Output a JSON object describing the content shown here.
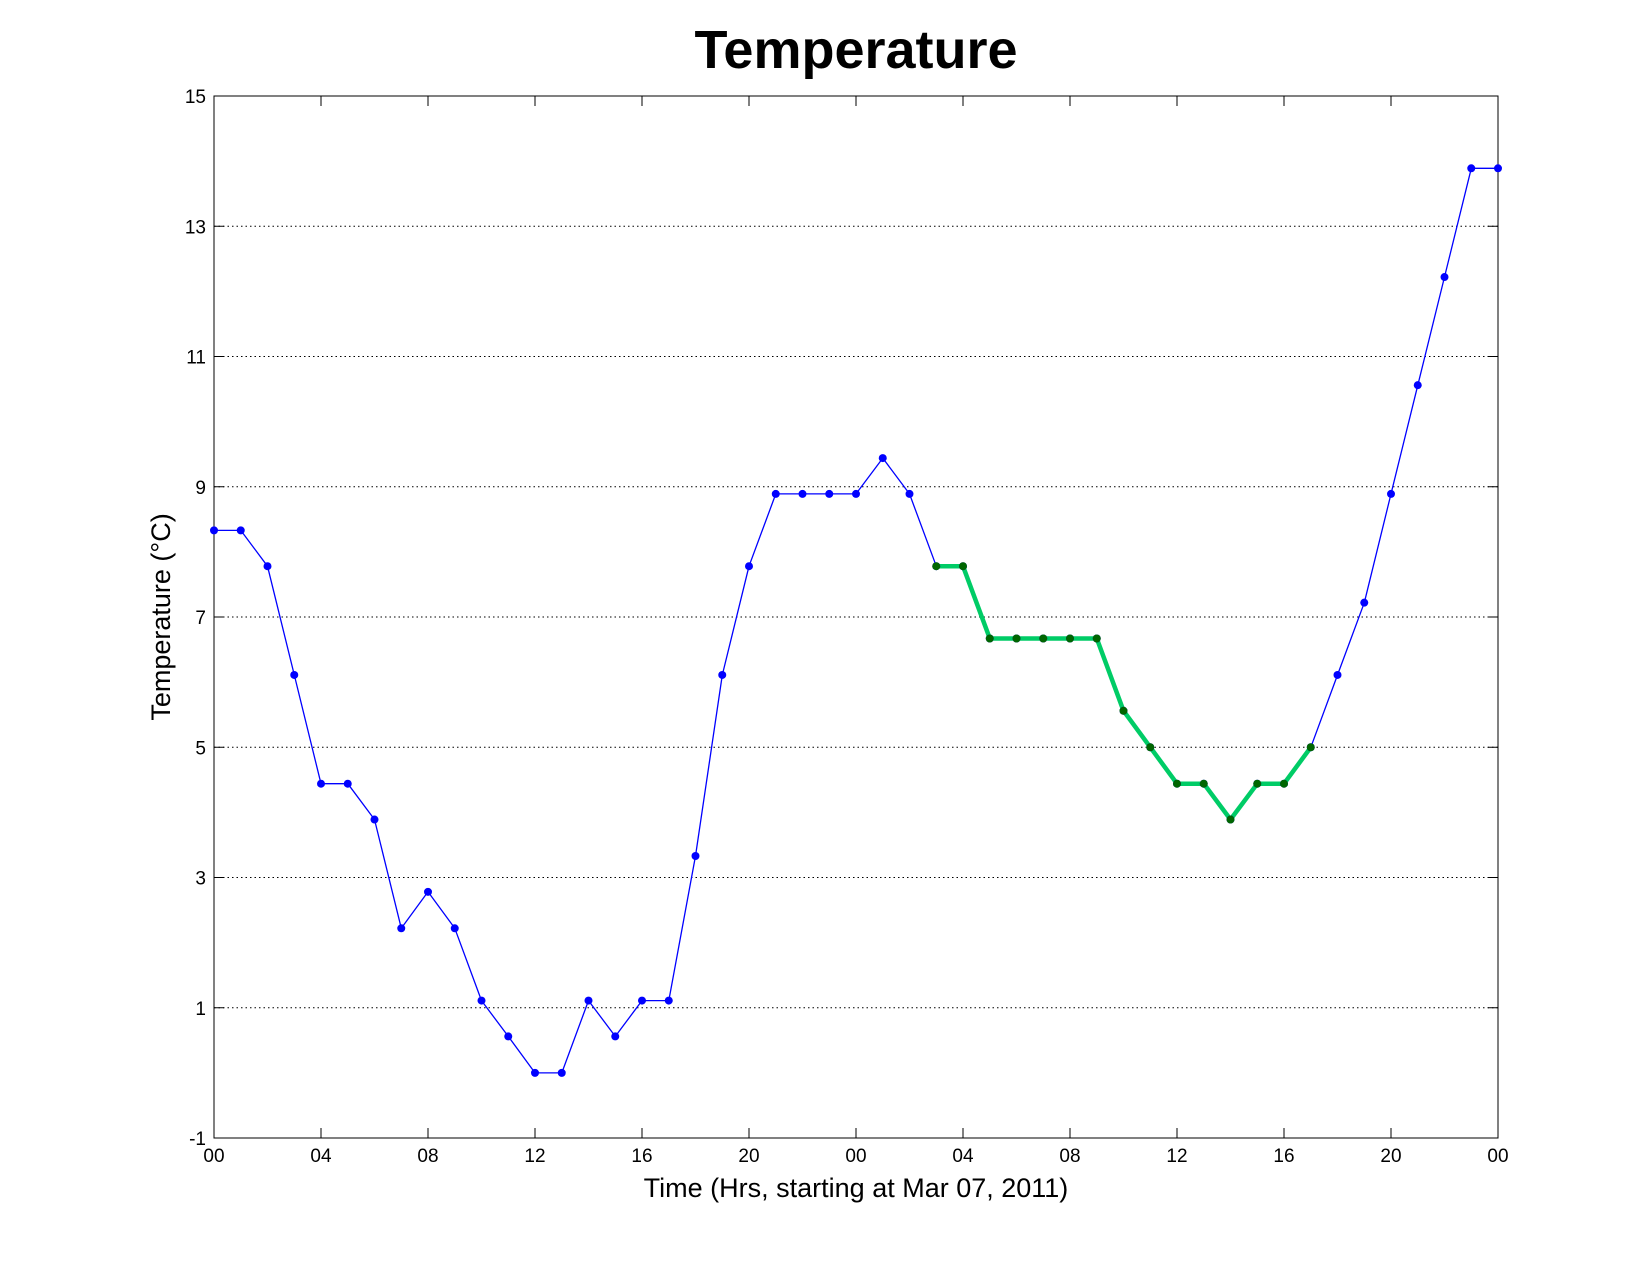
{
  "chart_data": {
    "type": "line",
    "title": "Temperature",
    "xlabel": "Time (Hrs, starting at Mar 07, 2011)",
    "ylabel": "Temperature (°C)",
    "xlim": [
      0,
      48
    ],
    "ylim": [
      -1,
      15
    ],
    "grid": "y-dotted",
    "x_ticks": [
      {
        "x": 0,
        "label": "00"
      },
      {
        "x": 4,
        "label": "04"
      },
      {
        "x": 8,
        "label": "08"
      },
      {
        "x": 12,
        "label": "12"
      },
      {
        "x": 16,
        "label": "16"
      },
      {
        "x": 20,
        "label": "20"
      },
      {
        "x": 24,
        "label": "00"
      },
      {
        "x": 28,
        "label": "04"
      },
      {
        "x": 32,
        "label": "08"
      },
      {
        "x": 36,
        "label": "12"
      },
      {
        "x": 40,
        "label": "16"
      },
      {
        "x": 44,
        "label": "20"
      },
      {
        "x": 48,
        "label": "00"
      }
    ],
    "y_ticks": [
      -1,
      1,
      3,
      5,
      7,
      9,
      11,
      13,
      15
    ],
    "series": [
      {
        "color": "#0000ff",
        "marker_color": "#0000ff",
        "x": [
          0,
          1,
          2,
          3,
          4,
          5,
          6,
          7,
          8,
          9,
          10,
          11,
          12,
          13,
          14,
          15,
          16,
          17,
          18,
          19,
          20,
          21,
          22,
          23,
          24,
          25,
          26,
          27,
          28,
          29,
          30,
          31,
          32,
          33,
          34,
          35,
          36,
          37,
          38,
          39,
          40,
          41,
          42,
          43,
          44,
          45,
          46,
          47,
          48
        ],
        "y": [
          8.33,
          8.33,
          7.78,
          6.11,
          4.44,
          4.44,
          3.89,
          2.22,
          2.78,
          2.22,
          1.11,
          0.56,
          0.0,
          0.0,
          1.11,
          0.56,
          1.11,
          1.11,
          3.33,
          6.11,
          7.78,
          8.89,
          8.89,
          8.89,
          8.89,
          9.44,
          8.89,
          7.78,
          7.78,
          6.67,
          6.67,
          6.67,
          6.67,
          6.67,
          5.56,
          5.0,
          4.44,
          4.44,
          3.89,
          4.44,
          4.44,
          5.0,
          6.11,
          7.22,
          8.89,
          10.56,
          12.22,
          13.89,
          13.89
        ]
      },
      {
        "color": "#00cc66",
        "marker_color": "#006600",
        "x": [
          27,
          28,
          29,
          30,
          31,
          32,
          33,
          34,
          35,
          36,
          37,
          38,
          39,
          40,
          41
        ],
        "y": [
          7.78,
          7.78,
          6.67,
          6.67,
          6.67,
          6.67,
          6.67,
          5.56,
          5.0,
          4.44,
          4.44,
          3.89,
          4.44,
          4.44,
          5.0
        ]
      }
    ]
  }
}
